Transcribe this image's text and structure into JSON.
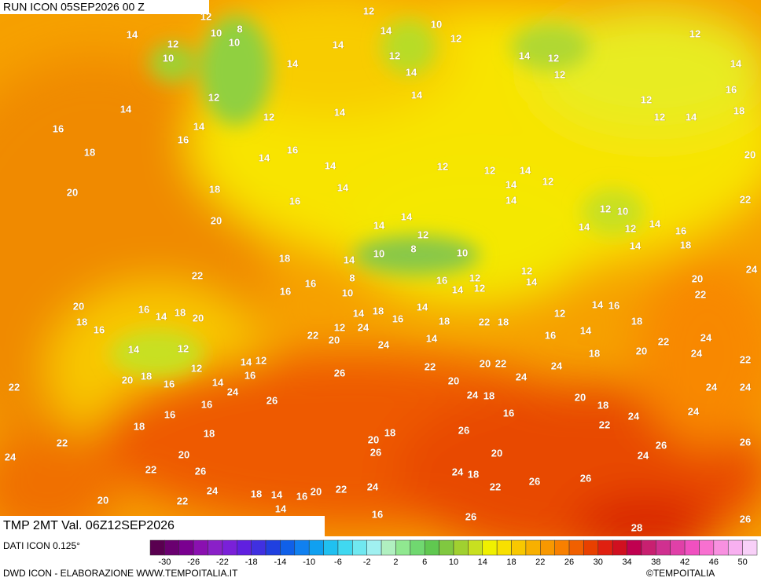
{
  "map": {
    "header": "RUN ICON 05SEP2026 00 Z",
    "subtitle": "TMP 2MT Val. 06Z12SEP2026",
    "labels": [
      12,
      14,
      10,
      8,
      12,
      10,
      10,
      14,
      14,
      12,
      14,
      10,
      12,
      12,
      14,
      14,
      14,
      12,
      12,
      12,
      14,
      16,
      18,
      12,
      14,
      12,
      14,
      14,
      16,
      16,
      16,
      14,
      18,
      14,
      14,
      12,
      12,
      14,
      12,
      14,
      14,
      12,
      12,
      14,
      20,
      20,
      18,
      16,
      22,
      12,
      10,
      20,
      14,
      14,
      14,
      12,
      14,
      16,
      18,
      14,
      12,
      8,
      10,
      10,
      14,
      18,
      22,
      12,
      14,
      8,
      16,
      12,
      16,
      16,
      10,
      14,
      12,
      20,
      22,
      24,
      20,
      16,
      14,
      18,
      20,
      18,
      16,
      14,
      16,
      12,
      18,
      14,
      18,
      14,
      16,
      18,
      22,
      18,
      12,
      24,
      22,
      20,
      14,
      12,
      14,
      16,
      14,
      24,
      18,
      22,
      24,
      24,
      20,
      22,
      14,
      12,
      12,
      22,
      20,
      22,
      24,
      26,
      20,
      18,
      16,
      14,
      16,
      24,
      22,
      20,
      24,
      24,
      24,
      26,
      16,
      24,
      18,
      20,
      18,
      24,
      16,
      16,
      24,
      22,
      18,
      26,
      18,
      20,
      18,
      22,
      26,
      26,
      26,
      24,
      20,
      20,
      24,
      22,
      26,
      24,
      18,
      26,
      26,
      22,
      24,
      18,
      14,
      16,
      20,
      22,
      24,
      22,
      20,
      14,
      16,
      26,
      28,
      26
    ]
  },
  "colorbar": {
    "range": [
      -32,
      52
    ],
    "ticks": [
      -30,
      -26,
      -22,
      -18,
      -14,
      -10,
      -6,
      -2,
      2,
      6,
      10,
      14,
      18,
      22,
      26,
      30,
      34,
      38,
      42,
      46,
      50
    ]
  },
  "footer": {
    "source": "DATI ICON 0.125°",
    "credit": "DWD ICON - ELABORAZIONE WWW.TEMPOITALIA.IT",
    "copyright": "©TEMPOITALIA"
  }
}
